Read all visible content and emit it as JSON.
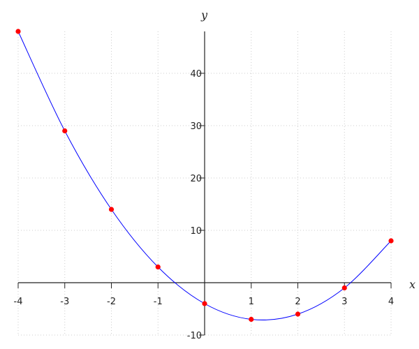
{
  "chart_data": {
    "type": "line",
    "title": "",
    "xlabel": "x",
    "ylabel": "y",
    "xlim": [
      -4,
      4
    ],
    "ylim": [
      -10,
      48
    ],
    "grid": true,
    "x_ticks": [
      -4,
      -3,
      -2,
      -1,
      0,
      1,
      2,
      3,
      4
    ],
    "x_tick_labels": [
      "-4",
      "-3",
      "-2",
      "-1",
      "",
      "1",
      "2",
      "3",
      "4"
    ],
    "y_ticks": [
      -10,
      10,
      20,
      30,
      40
    ],
    "y_tick_labels": [
      "-10",
      "10",
      "20",
      "30",
      "40"
    ],
    "series": [
      {
        "x": [
          -4,
          -3,
          -2,
          -1,
          0,
          1,
          2,
          3,
          4
        ],
        "y": [
          48,
          29,
          14,
          3,
          -4,
          -7,
          -6,
          -1,
          8
        ],
        "line_color": "#0000ff",
        "marker_color": "#ff0000"
      }
    ]
  }
}
